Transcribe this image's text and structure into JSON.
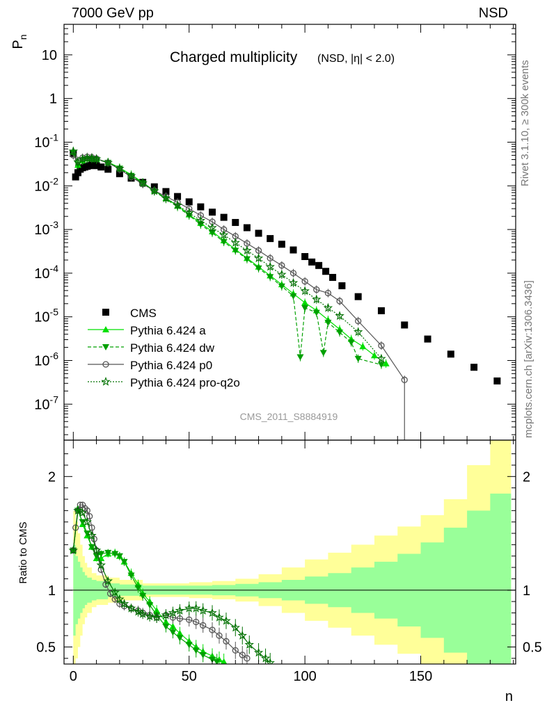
{
  "header": {
    "left": "7000 GeV pp",
    "right": "NSD"
  },
  "side_labels": {
    "rivet": "Rivet 3.1.10, ≥ 300k events",
    "mcplots": "mcplots.cern.ch [arXiv:1306.3436]"
  },
  "chart_data": [
    {
      "type": "scatter",
      "title": "Charged multiplicity",
      "subtitle": "(NSD, |η| < 2.0)",
      "watermark": "CMS_2011_S8884919",
      "ylabel": "P_n",
      "y_scale": "log",
      "xlim": [
        -4,
        191
      ],
      "ylim": [
        1.5e-08,
        50
      ],
      "y_ticks": [
        "10^{-7}",
        "10^{-6}",
        "10^{-5}",
        "10^{-4}",
        "10^{-3}",
        "10^{-2}",
        "10^{-1}",
        "1",
        "10"
      ],
      "legend_position": "bottom-left",
      "series": [
        {
          "name": "CMS",
          "marker": "square",
          "color": "#000000",
          "style": "markers",
          "x": [
            0,
            1,
            2,
            3,
            4,
            5,
            6,
            7,
            8,
            9,
            10,
            12,
            15,
            20,
            25,
            30,
            35,
            40,
            45,
            50,
            55,
            60,
            65,
            70,
            75,
            80,
            85,
            90,
            95,
            100,
            103,
            106,
            109,
            112,
            116,
            123,
            133,
            143,
            153,
            163,
            173,
            183
          ],
          "y": [
            0.055,
            0.016,
            0.02,
            0.024,
            0.026,
            0.027,
            0.028,
            0.029,
            0.03,
            0.03,
            0.029,
            0.027,
            0.024,
            0.019,
            0.015,
            0.012,
            0.0095,
            0.0074,
            0.0057,
            0.0043,
            0.0033,
            0.0025,
            0.0019,
            0.00145,
            0.0011,
            0.00082,
            0.00062,
            0.00046,
            0.00034,
            0.00024,
            0.00018,
            0.00015,
            0.00011,
            8e-05,
            5.15e-05,
            2.9e-05,
            1.38e-05,
            6.5e-06,
            3.1e-06,
            1.4e-06,
            7e-07,
            3.4e-07
          ]
        },
        {
          "name": "Pythia 6.424 a",
          "marker": "triangle-up",
          "color": "#00e000",
          "style": "solid",
          "x": [
            0,
            2,
            4,
            6,
            8,
            10,
            15,
            20,
            25,
            30,
            35,
            40,
            45,
            50,
            55,
            60,
            65,
            70,
            75,
            80,
            85,
            90,
            95,
            100,
            105,
            110,
            115,
            120,
            125,
            130,
            135
          ],
          "y": [
            0.06,
            0.03,
            0.038,
            0.042,
            0.042,
            0.041,
            0.035,
            0.026,
            0.018,
            0.012,
            0.0077,
            0.0052,
            0.0035,
            0.0022,
            0.0014,
            0.0009,
            0.00056,
            0.00035,
            0.00022,
            0.00014,
            8.8e-05,
            5.5e-05,
            3.4e-05,
            2.1e-05,
            1.4e-05,
            8.5e-06,
            5.2e-06,
            3.1e-06,
            2.1e-06,
            1.3e-06,
            8.5e-07
          ]
        },
        {
          "name": "Pythia 6.424 dw",
          "marker": "triangle-down",
          "color": "#00a000",
          "style": "dashed",
          "x": [
            0,
            2,
            4,
            6,
            8,
            10,
            15,
            20,
            25,
            30,
            35,
            40,
            45,
            50,
            55,
            60,
            65,
            70,
            75,
            80,
            85,
            90,
            95,
            98,
            100,
            105,
            108,
            110,
            115,
            120,
            123,
            133
          ],
          "y": [
            0.058,
            0.031,
            0.039,
            0.042,
            0.042,
            0.04,
            0.034,
            0.025,
            0.017,
            0.0115,
            0.0075,
            0.005,
            0.0033,
            0.0021,
            0.0013,
            0.00084,
            0.00052,
            0.00033,
            0.00021,
            0.00013,
            8.2e-05,
            5e-05,
            3e-05,
            1.2e-06,
            1.6e-05,
            1.25e-05,
            1.5e-06,
            7.4e-06,
            4.4e-06,
            2.6e-06,
            1.1e-06,
            8e-07
          ]
        },
        {
          "name": "Pythia 6.424 p0",
          "marker": "circle-open",
          "color": "#555555",
          "style": "solid",
          "x": [
            0,
            2,
            4,
            6,
            8,
            10,
            15,
            20,
            25,
            30,
            35,
            40,
            45,
            50,
            55,
            60,
            65,
            70,
            75,
            80,
            85,
            90,
            95,
            100,
            105,
            110,
            115,
            123,
            133,
            143
          ],
          "y": [
            0.05,
            0.038,
            0.044,
            0.046,
            0.045,
            0.042,
            0.034,
            0.024,
            0.016,
            0.011,
            0.0078,
            0.0057,
            0.0042,
            0.003,
            0.0021,
            0.0015,
            0.001,
            0.0007,
            0.00048,
            0.00033,
            0.00022,
            0.00015,
            0.0001,
            6.5e-05,
            4.2e-05,
            3.5e-05,
            2.3e-05,
            8e-06,
            2.2e-06,
            3.6e-07
          ]
        },
        {
          "name": "Pythia 6.424 pro-q2o",
          "marker": "star",
          "color": "#007000",
          "style": "dotted",
          "x": [
            0,
            2,
            4,
            6,
            8,
            10,
            15,
            20,
            25,
            30,
            35,
            40,
            45,
            50,
            55,
            60,
            65,
            70,
            75,
            80,
            85,
            90,
            95,
            100,
            105,
            110,
            115,
            123,
            133
          ],
          "y": [
            0.062,
            0.035,
            0.041,
            0.043,
            0.043,
            0.041,
            0.034,
            0.025,
            0.017,
            0.0115,
            0.0076,
            0.0052,
            0.0036,
            0.0024,
            0.0016,
            0.0011,
            0.00075,
            0.0005,
            0.00033,
            0.00022,
            0.00014,
            9.3e-05,
            6e-05,
            3.9e-05,
            2.5e-05,
            1.6e-05,
            1.05e-05,
            4.5e-06,
            1.1e-06
          ]
        }
      ]
    },
    {
      "type": "scatter",
      "ylabel": "Ratio to CMS",
      "xlabel": "n",
      "xlim": [
        -4,
        191
      ],
      "ylim": [
        0.35,
        2.32
      ],
      "x_ticks": [
        0,
        50,
        100,
        150
      ],
      "y_ticks": [
        0.5,
        1,
        2
      ],
      "reference_line": 1,
      "bands": {
        "x": [
          0,
          1,
          2,
          3,
          4,
          5,
          6,
          8,
          10,
          15,
          20,
          30,
          40,
          50,
          60,
          70,
          80,
          90,
          100,
          110,
          120,
          130,
          140,
          150,
          160,
          170,
          180,
          189
        ],
        "inner": [
          0.4,
          0.3,
          0.25,
          0.2,
          0.16,
          0.13,
          0.11,
          0.09,
          0.08,
          0.06,
          0.05,
          0.04,
          0.04,
          0.04,
          0.045,
          0.055,
          0.07,
          0.09,
          0.12,
          0.15,
          0.2,
          0.25,
          0.32,
          0.42,
          0.55,
          0.7,
          0.85,
          0.85
        ],
        "outer": [
          0.7,
          0.6,
          0.5,
          0.4,
          0.3,
          0.24,
          0.2,
          0.15,
          0.13,
          0.11,
          0.09,
          0.06,
          0.06,
          0.07,
          0.08,
          0.1,
          0.14,
          0.2,
          0.27,
          0.33,
          0.4,
          0.48,
          0.56,
          0.66,
          0.8,
          1.1,
          1.4,
          1.4
        ]
      },
      "series": [
        {
          "name": "Pythia 6.424 a",
          "color": "#00e000",
          "marker": "triangle-up",
          "x": [
            0,
            2,
            4,
            6,
            8,
            10,
            12,
            15,
            18,
            20,
            22,
            25,
            28,
            30,
            33,
            36,
            40,
            43,
            46,
            50,
            53,
            56,
            60,
            63,
            65
          ],
          "y": [
            1.35,
            1.72,
            1.58,
            1.48,
            1.38,
            1.28,
            1.28,
            1.32,
            1.33,
            1.3,
            1.25,
            1.15,
            1.05,
            0.97,
            0.9,
            0.82,
            0.72,
            0.68,
            0.62,
            0.55,
            0.5,
            0.46,
            0.42,
            0.39,
            0.37
          ]
        },
        {
          "name": "Pythia 6.424 dw",
          "color": "#00a000",
          "marker": "triangle-down",
          "x": [
            0,
            2,
            4,
            6,
            8,
            10,
            12,
            15,
            18,
            20,
            22,
            25,
            28,
            30,
            33,
            36,
            40,
            43,
            46,
            50,
            53,
            56,
            60,
            62
          ],
          "y": [
            1.35,
            1.7,
            1.6,
            1.5,
            1.38,
            1.3,
            1.32,
            1.33,
            1.32,
            1.3,
            1.25,
            1.13,
            1.02,
            0.95,
            0.87,
            0.78,
            0.68,
            0.63,
            0.58,
            0.52,
            0.47,
            0.43,
            0.39,
            0.37
          ]
        },
        {
          "name": "Pythia 6.424 p0",
          "color": "#555555",
          "marker": "circle-open",
          "x": [
            0,
            1,
            2,
            3,
            4,
            5,
            6,
            7,
            8,
            9,
            10,
            12,
            14,
            16,
            18,
            20,
            22,
            25,
            28,
            30,
            33,
            36,
            40,
            43,
            46,
            50,
            53,
            56,
            60,
            63,
            66,
            70,
            73,
            75
          ],
          "y": [
            1.35,
            1.55,
            1.7,
            1.75,
            1.75,
            1.72,
            1.7,
            1.65,
            1.55,
            1.45,
            1.35,
            1.18,
            1.05,
            0.97,
            0.92,
            0.88,
            0.86,
            0.84,
            0.82,
            0.8,
            0.78,
            0.76,
            0.78,
            0.76,
            0.75,
            0.74,
            0.72,
            0.69,
            0.65,
            0.6,
            0.55,
            0.47,
            0.43,
            0.4
          ]
        },
        {
          "name": "Pythia 6.424 pro-q2o",
          "color": "#007000",
          "marker": "star",
          "x": [
            0,
            2,
            4,
            6,
            8,
            10,
            12,
            15,
            18,
            20,
            22,
            25,
            28,
            30,
            33,
            36,
            40,
            43,
            46,
            50,
            53,
            56,
            60,
            63,
            66,
            70,
            73,
            76,
            80,
            83,
            85
          ],
          "y": [
            1.35,
            1.7,
            1.68,
            1.6,
            1.48,
            1.35,
            1.22,
            1.08,
            0.98,
            0.92,
            0.88,
            0.84,
            0.81,
            0.79,
            0.77,
            0.76,
            0.78,
            0.8,
            0.82,
            0.84,
            0.84,
            0.82,
            0.8,
            0.76,
            0.73,
            0.67,
            0.6,
            0.52,
            0.45,
            0.4,
            0.36
          ]
        }
      ]
    }
  ]
}
